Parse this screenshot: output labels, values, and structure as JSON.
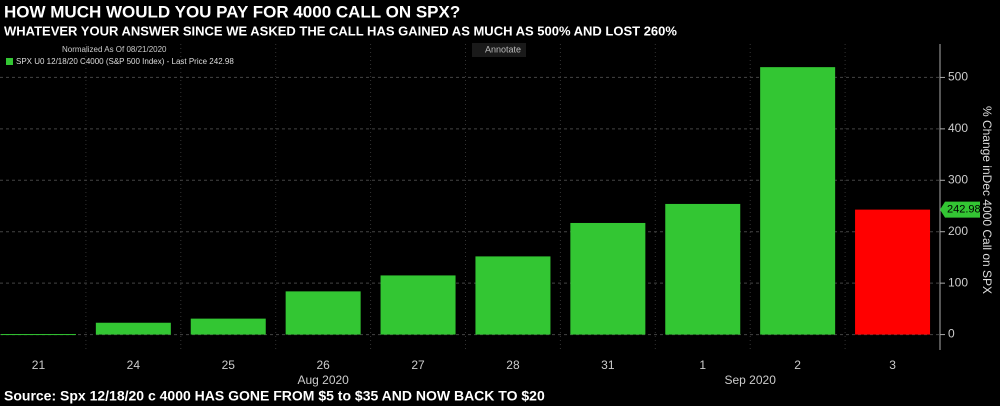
{
  "chart_data": {
    "type": "bar",
    "title": "HOW MUCH WOULD YOU PAY FOR 4000 CALL ON SPX?",
    "subtitle": "WHATEVER YOUR ANSWER SINCE WE ASKED THE CALL HAS  GAINED AS MUCH AS 500% AND LOST 260%",
    "source": "Source: Spx 12/18/20 c 4000  HAS GONE FROM $5 to $35 AND NOW BACK TO $20",
    "normalized_note": "Normalized As Of 08/21/2020",
    "annotate_button": "Annotate",
    "y_axis_label": "% Change inDec 4000 Call on SPX",
    "categories": [
      "21",
      "24",
      "25",
      "26",
      "27",
      "28",
      "31",
      "1",
      "2",
      "3"
    ],
    "month_labels": [
      "Aug 2020",
      "Sep 2020"
    ],
    "series": [
      {
        "name": "SPX U0 12/18/20 C4000 (S&P 500 Index) - Last Price 242.98",
        "color": "#33c633",
        "values": [
          1,
          23,
          31,
          84,
          115,
          152,
          217,
          254,
          520,
          242.98
        ],
        "colors": [
          "#33c633",
          "#33c633",
          "#33c633",
          "#33c633",
          "#33c633",
          "#33c633",
          "#33c633",
          "#33c633",
          "#33c633",
          "#ff0000"
        ]
      }
    ],
    "ylim": [
      -30,
      565
    ],
    "yticks": [
      0,
      100,
      200,
      300,
      400,
      500
    ],
    "grid": true
  }
}
